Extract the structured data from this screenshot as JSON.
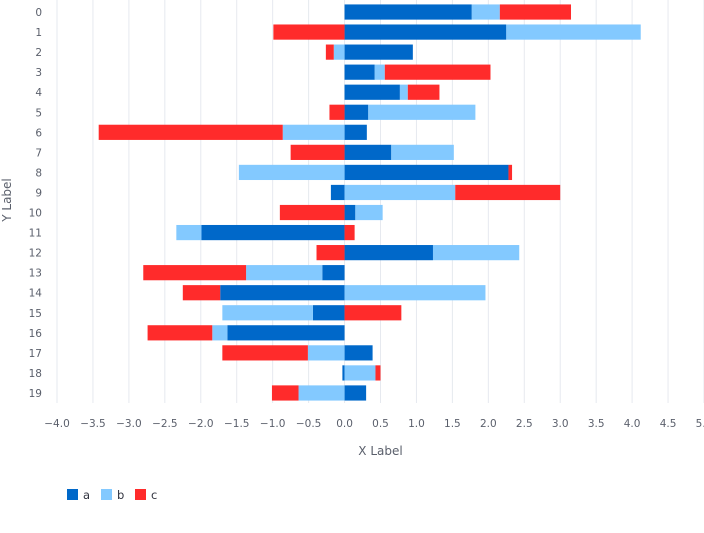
{
  "chart_data": {
    "type": "bar",
    "orientation": "horizontal",
    "stacked": "diverging",
    "xlabel": "X Label",
    "ylabel": "Y Label",
    "xlim": [
      -4.0,
      5.0
    ],
    "xticks": [
      "-4.0",
      "-3.5",
      "-3.0",
      "-2.5",
      "-2.0",
      "-1.5",
      "-1.0",
      "-0.5",
      "0.0",
      "0.5",
      "1.0",
      "1.5",
      "2.0",
      "2.5",
      "3.0",
      "3.5",
      "4.0",
      "4.5",
      "5.0"
    ],
    "grid": "vertical",
    "legend_position": "bottom-left",
    "categories": [
      "0",
      "1",
      "2",
      "3",
      "4",
      "5",
      "6",
      "7",
      "8",
      "9",
      "10",
      "11",
      "12",
      "13",
      "14",
      "15",
      "16",
      "17",
      "18",
      "19"
    ],
    "series": [
      {
        "name": "a",
        "color": "#0068c9",
        "values": [
          1.77,
          2.25,
          0.95,
          0.42,
          0.77,
          0.33,
          0.31,
          0.65,
          2.28,
          -0.19,
          0.15,
          -1.99,
          1.23,
          -0.31,
          -1.73,
          -0.44,
          -1.63,
          0.39,
          -0.03,
          0.3
        ]
      },
      {
        "name": "b",
        "color": "#83c9ff",
        "values": [
          0.39,
          1.87,
          -0.15,
          0.14,
          0.11,
          1.49,
          -0.86,
          0.87,
          -1.47,
          1.54,
          0.38,
          -0.35,
          1.2,
          -1.06,
          1.96,
          -1.26,
          -0.21,
          -0.51,
          0.43,
          -0.64
        ]
      },
      {
        "name": "c",
        "color": "#ff2b2b",
        "values": [
          0.99,
          -0.99,
          -0.11,
          1.47,
          0.44,
          -0.21,
          -2.56,
          -0.75,
          0.05,
          1.46,
          -0.9,
          0.14,
          -0.39,
          -1.43,
          -0.52,
          0.79,
          -0.9,
          -1.19,
          0.07,
          -0.37
        ]
      }
    ]
  }
}
